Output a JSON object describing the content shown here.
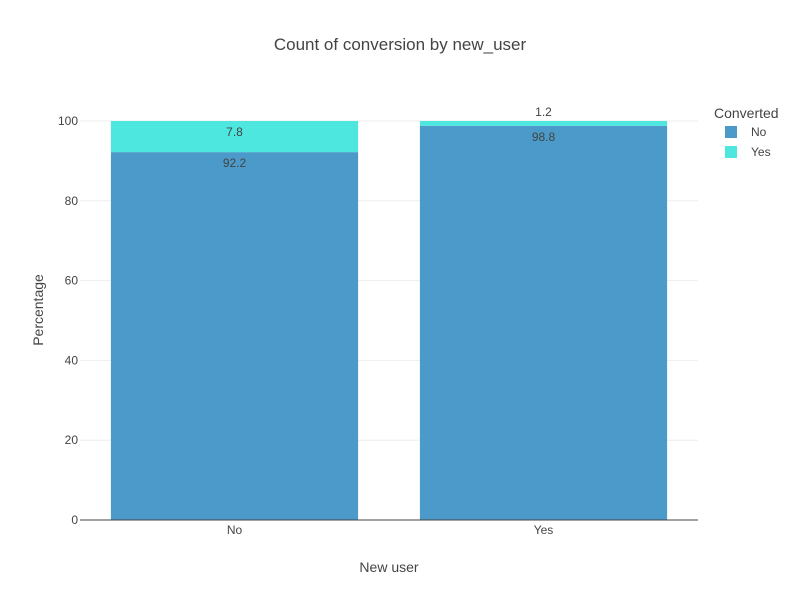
{
  "chart_data": {
    "type": "bar",
    "stacked": true,
    "title": "Count of conversion by new_user",
    "xlabel": "New user",
    "ylabel": "Percentage",
    "categories": [
      "No",
      "Yes"
    ],
    "ylim": [
      0,
      100
    ],
    "yticks": [
      0,
      20,
      40,
      60,
      80,
      100
    ],
    "grid": true,
    "legend": {
      "title": "Converted",
      "placement": "top-right"
    },
    "series": [
      {
        "name": "No",
        "values": [
          92.2,
          98.8
        ],
        "color": "#4b9ac9"
      },
      {
        "name": "Yes",
        "values": [
          7.8,
          1.2
        ],
        "color": "#4de7e0"
      }
    ]
  }
}
